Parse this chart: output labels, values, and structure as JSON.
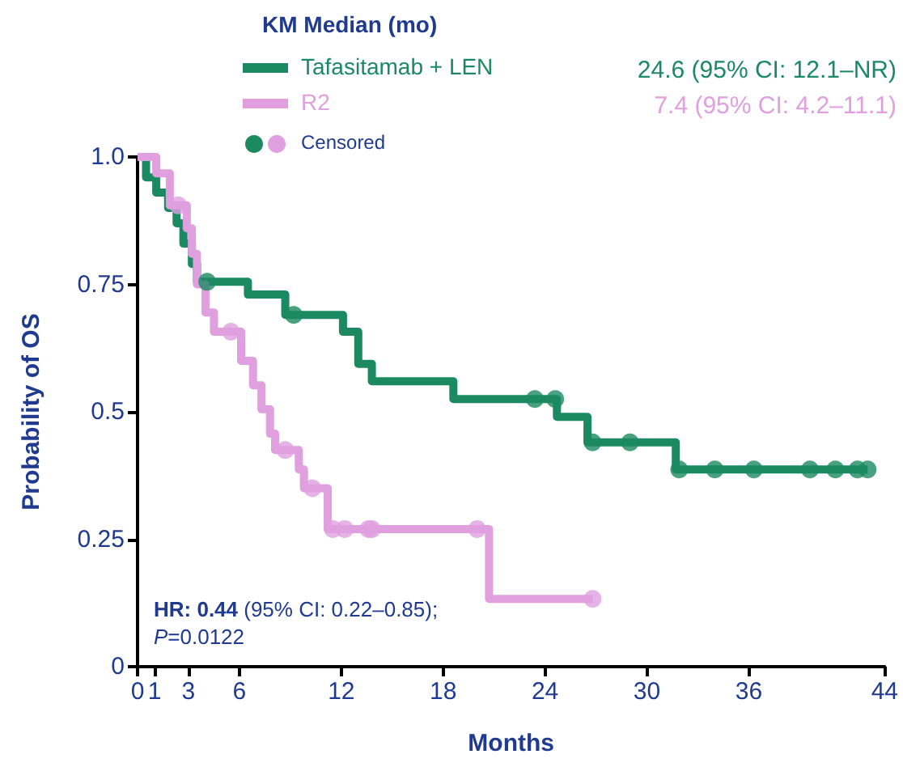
{
  "chart_data": {
    "type": "step",
    "legend_title": "KM Median (mo)",
    "xlabel": "Months",
    "ylabel": "Probability of OS",
    "legend": "top",
    "marker": "none",
    "annotations": [
      "24.6 (95% CI: 12.1–NR)",
      "7.4 (95% CI: 4.2–11.1)",
      "HR: 0.44 (95% CI: 0.22–0.85);",
      "P=0.0122"
    ],
    "xlim": [
      0,
      44
    ],
    "xticks": [
      0,
      1,
      3,
      6,
      12,
      18,
      24,
      30,
      36,
      44
    ],
    "ylim": [
      0,
      1
    ],
    "yticks": [
      {
        "value": 0,
        "label": "0"
      },
      0.25,
      0.5,
      0.75,
      {
        "value": 1,
        "label": "1.0"
      }
    ],
    "series": [
      {
        "name": "Tafasitamab + LEN",
        "color": "#1b8a63",
        "x": [
          0,
          0.5,
          1.1,
          1.8,
          2.3,
          2.7,
          3.2,
          3.5,
          6.5,
          8.7,
          12.1,
          13.0,
          13.8,
          18.6,
          24.7,
          26.5,
          31.7,
          43.0
        ],
        "values": [
          1,
          0.96,
          0.93,
          0.9,
          0.87,
          0.83,
          0.79,
          0.755,
          0.73,
          0.69,
          0.657,
          0.594,
          0.56,
          0.525,
          0.49,
          0.44,
          0.387,
          0.387
        ]
      },
      {
        "name": "R2",
        "color": "#e0a0e0",
        "x": [
          0,
          1.1,
          1.9,
          2.9,
          3.2,
          3.5,
          4.0,
          4.5,
          6.1,
          6.8,
          7.3,
          7.8,
          8.1,
          9.5,
          9.8,
          11.2,
          20.7,
          26.8
        ],
        "values": [
          1,
          0.968,
          0.905,
          0.86,
          0.81,
          0.75,
          0.695,
          0.657,
          0.6,
          0.552,
          0.505,
          0.457,
          0.425,
          0.387,
          0.35,
          0.27,
          0.133,
          0.133
        ]
      },
      {
        "name": "Censored",
        "type": "scatter",
        "marker": "circle",
        "colors": [
          "#1b8a63",
          "#1b8a63",
          "#1b8a63",
          "#1b8a63",
          "#1b8a63",
          "#1b8a63",
          "#1b8a63",
          "#1b8a63",
          "#1b8a63",
          "#1b8a63",
          "#1b8a63",
          "#1b8a63",
          "#1b8a63",
          "#e0a0e0",
          "#e0a0e0",
          "#e0a0e0",
          "#e0a0e0",
          "#e0a0e0",
          "#e0a0e0",
          "#e0a0e0",
          "#e0a0e0",
          "#e0a0e0",
          "#e0a0e0"
        ],
        "x": [
          4.1,
          9.2,
          23.4,
          24.6,
          26.8,
          29.0,
          31.9,
          34.0,
          36.3,
          39.6,
          41.1,
          42.4,
          43.0,
          2.4,
          5.5,
          8.7,
          10.3,
          11.5,
          12.2,
          13.6,
          13.8,
          20.0,
          26.8
        ],
        "values": [
          0.755,
          0.69,
          0.525,
          0.525,
          0.44,
          0.44,
          0.387,
          0.387,
          0.387,
          0.387,
          0.387,
          0.387,
          0.387,
          0.905,
          0.657,
          0.425,
          0.35,
          0.27,
          0.27,
          0.27,
          0.27,
          0.27,
          0.133
        ]
      }
    ]
  }
}
